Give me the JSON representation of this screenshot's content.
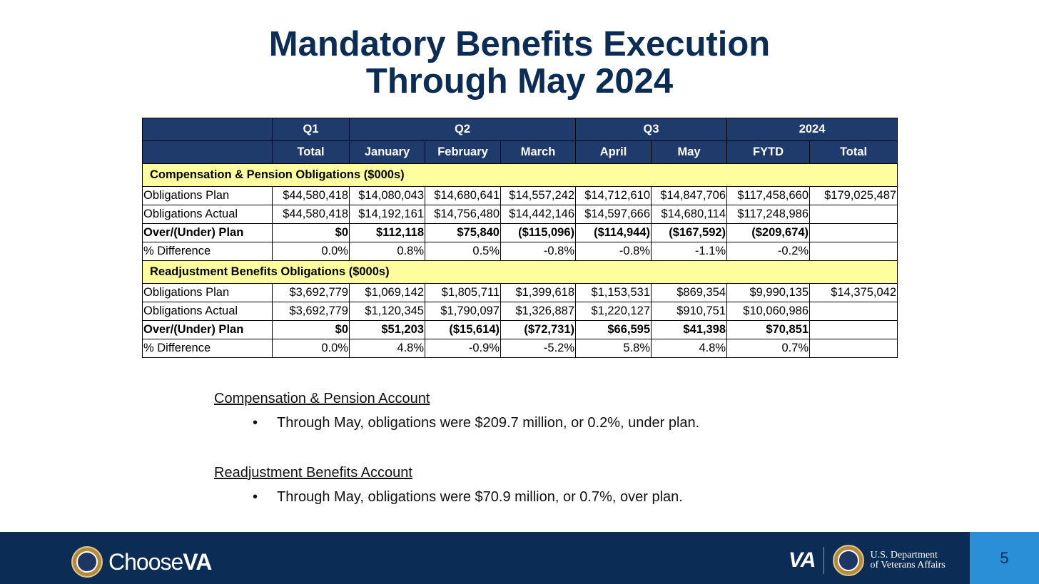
{
  "title": {
    "line1": "Mandatory Benefits Execution",
    "line2": "Through May 2024"
  },
  "table": {
    "group_headers": [
      "",
      "Q1",
      "Q2",
      "Q3",
      "2024"
    ],
    "sub_headers": [
      "",
      "Total",
      "January",
      "February",
      "March",
      "April",
      "May",
      "FYTD",
      "Total"
    ],
    "sections": [
      {
        "title": "Compensation & Pension Obligations ($000s)",
        "rows": [
          {
            "label": "Obligations Plan",
            "bold": false,
            "cells": [
              "$44,580,418",
              "$14,080,043",
              "$14,680,641",
              "$14,557,242",
              "$14,712,610",
              "$14,847,706",
              "$117,458,660",
              "$179,025,487"
            ]
          },
          {
            "label": "Obligations Actual",
            "bold": false,
            "cells": [
              "$44,580,418",
              "$14,192,161",
              "$14,756,480",
              "$14,442,146",
              "$14,597,666",
              "$14,680,114",
              "$117,248,986",
              ""
            ]
          },
          {
            "label": "Over/(Under) Plan",
            "bold": true,
            "cells": [
              "$0",
              "$112,118",
              "$75,840",
              "($115,096)",
              "($114,944)",
              "($167,592)",
              "($209,674)",
              ""
            ]
          },
          {
            "label": "% Difference",
            "bold": false,
            "cells": [
              "0.0%",
              "0.8%",
              "0.5%",
              "-0.8%",
              "-0.8%",
              "-1.1%",
              "-0.2%",
              ""
            ]
          }
        ]
      },
      {
        "title": "Readjustment Benefits Obligations ($000s)",
        "rows": [
          {
            "label": "Obligations Plan",
            "bold": false,
            "cells": [
              "$3,692,779",
              "$1,069,142",
              "$1,805,711",
              "$1,399,618",
              "$1,153,531",
              "$869,354",
              "$9,990,135",
              "$14,375,042"
            ]
          },
          {
            "label": "Obligations Actual",
            "bold": false,
            "cells": [
              "$3,692,779",
              "$1,120,345",
              "$1,790,097",
              "$1,326,887",
              "$1,220,127",
              "$910,751",
              "$10,060,986",
              ""
            ]
          },
          {
            "label": "Over/(Under) Plan",
            "bold": true,
            "cells": [
              "$0",
              "$51,203",
              "($15,614)",
              "($72,731)",
              "$66,595",
              "$41,398",
              "$70,851",
              ""
            ]
          },
          {
            "label": "% Difference",
            "bold": false,
            "cells": [
              "0.0%",
              "4.8%",
              "-0.9%",
              "-5.2%",
              "5.8%",
              "4.8%",
              "0.7%",
              ""
            ]
          }
        ]
      }
    ]
  },
  "notes": [
    {
      "heading": "Compensation & Pension Account",
      "bullet": "Through May, obligations were $209.7 million, or 0.2%, under plan."
    },
    {
      "heading": "Readjustment Benefits Account",
      "bullet": "Through May, obligations were $70.9 million, or 0.7%, over plan."
    }
  ],
  "footer": {
    "choose_prefix": "Choose",
    "choose_suffix": "VA",
    "va_mark": "VA",
    "dept_line1": "U.S. Department",
    "dept_line2": "of Veterans Affairs",
    "page_number": "5"
  },
  "colors": {
    "navy": "#0b2d55",
    "header_blue": "#1f3b6b",
    "section_yellow": "#fefe9e",
    "page_tab_blue": "#2b8fd8"
  }
}
